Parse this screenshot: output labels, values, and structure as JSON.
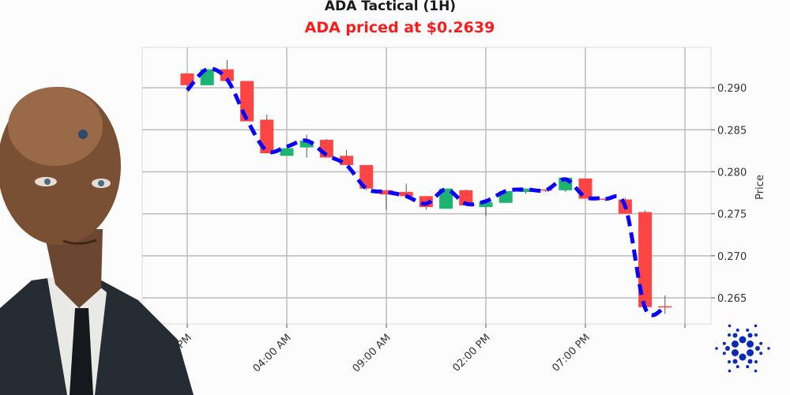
{
  "chart_data": {
    "type": "candlestick",
    "title": "ADA Tactical (1H)",
    "subtitle": "ADA priced at $0.2639",
    "ylabel": "Price",
    "xlabel": "",
    "ylim": [
      0.2619,
      0.2948
    ],
    "y_ticks": [
      "0.265",
      "0.270",
      "0.275",
      "0.280",
      "0.285",
      "0.290"
    ],
    "x_tick_labels": [
      "11:00 PM",
      "04:00 AM",
      "09:00 AM",
      "02:00 PM",
      "07:00 PM",
      ""
    ],
    "x_tick_hours": [
      0,
      5,
      10,
      15,
      20,
      25
    ],
    "grid": true,
    "y_axis_side": "right",
    "colors": {
      "up": "#1db371",
      "down": "#ff4444",
      "line": "#0a00ff",
      "wick": "#555555",
      "grid": "#bbbbbb"
    },
    "candles": [
      {
        "h": 0,
        "o": 0.2917,
        "c": 0.2903,
        "hi": 0.2917,
        "lo": 0.2899
      },
      {
        "h": 1,
        "o": 0.2903,
        "c": 0.2922,
        "hi": 0.2922,
        "lo": 0.2903
      },
      {
        "h": 2,
        "o": 0.2922,
        "c": 0.2908,
        "hi": 0.2933,
        "lo": 0.2908
      },
      {
        "h": 3,
        "o": 0.2908,
        "c": 0.286,
        "hi": 0.2908,
        "lo": 0.286
      },
      {
        "h": 4,
        "o": 0.2862,
        "c": 0.2822,
        "hi": 0.2868,
        "lo": 0.2822
      },
      {
        "h": 5,
        "o": 0.2819,
        "c": 0.2828,
        "hi": 0.2828,
        "lo": 0.2819
      },
      {
        "h": 6,
        "o": 0.2829,
        "c": 0.2837,
        "hi": 0.2844,
        "lo": 0.2817
      },
      {
        "h": 7,
        "o": 0.2838,
        "c": 0.2817,
        "hi": 0.2839,
        "lo": 0.2817
      },
      {
        "h": 8,
        "o": 0.2819,
        "c": 0.2808,
        "hi": 0.2826,
        "lo": 0.2808
      },
      {
        "h": 9,
        "o": 0.2808,
        "c": 0.278,
        "hi": 0.2808,
        "lo": 0.2778
      },
      {
        "h": 10,
        "o": 0.2778,
        "c": 0.2773,
        "hi": 0.2778,
        "lo": 0.2755
      },
      {
        "h": 11,
        "o": 0.2776,
        "c": 0.2771,
        "hi": 0.2786,
        "lo": 0.2771
      },
      {
        "h": 12,
        "o": 0.2771,
        "c": 0.2758,
        "hi": 0.2771,
        "lo": 0.2755
      },
      {
        "h": 13,
        "o": 0.2756,
        "c": 0.278,
        "hi": 0.278,
        "lo": 0.2756
      },
      {
        "h": 14,
        "o": 0.2778,
        "c": 0.276,
        "hi": 0.2779,
        "lo": 0.276
      },
      {
        "h": 15,
        "o": 0.2758,
        "c": 0.2764,
        "hi": 0.2764,
        "lo": 0.2747
      },
      {
        "h": 16,
        "o": 0.2763,
        "c": 0.2777,
        "hi": 0.2777,
        "lo": 0.2763
      },
      {
        "h": 17,
        "o": 0.2776,
        "c": 0.278,
        "hi": 0.278,
        "lo": 0.2774
      },
      {
        "h": 18,
        "o": 0.2779,
        "c": 0.2778,
        "hi": 0.2779,
        "lo": 0.2776
      },
      {
        "h": 19,
        "o": 0.2778,
        "c": 0.2793,
        "hi": 0.2793,
        "lo": 0.2776
      },
      {
        "h": 20,
        "o": 0.2792,
        "c": 0.2768,
        "hi": 0.2792,
        "lo": 0.2768
      },
      {
        "h": 21,
        "o": 0.2768,
        "c": 0.2767,
        "hi": 0.277,
        "lo": 0.2765
      },
      {
        "h": 22,
        "o": 0.2767,
        "c": 0.275,
        "hi": 0.2769,
        "lo": 0.275
      },
      {
        "h": 23,
        "o": 0.2752,
        "c": 0.2639,
        "hi": 0.2754,
        "lo": 0.2639
      },
      {
        "h": 24,
        "o": 0.264,
        "c": 0.2639,
        "hi": 0.2653,
        "lo": 0.2631
      }
    ],
    "trend_line": [
      0.2897,
      0.2922,
      0.291,
      0.2862,
      0.2825,
      0.283,
      0.2837,
      0.282,
      0.2808,
      0.278,
      0.2776,
      0.2771,
      0.2762,
      0.2779,
      0.2762,
      0.2765,
      0.2777,
      0.2779,
      0.2778,
      0.2791,
      0.277,
      0.2768,
      0.2759,
      0.2638,
      0.2639
    ]
  },
  "images": {
    "portrait": "man-in-suit",
    "logo": "cardano-logo"
  }
}
